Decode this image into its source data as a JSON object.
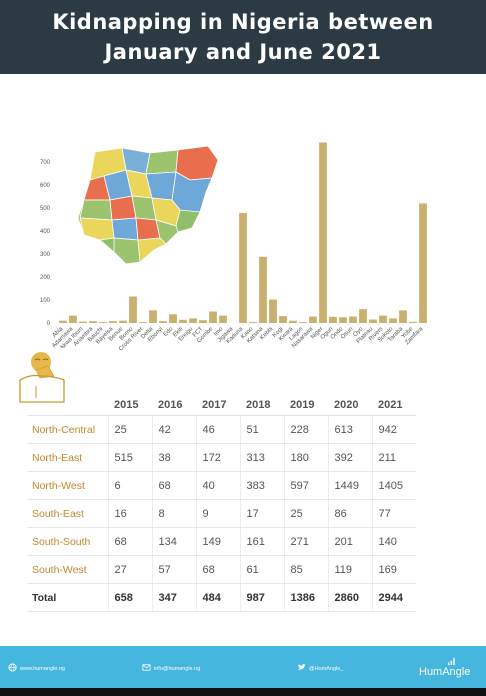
{
  "header": {
    "title_line1": "Kidnapping in Nigeria between",
    "title_line2": "January and June 2021"
  },
  "colors": {
    "header_bg": "#2b3a43",
    "bar": "#c9b06f",
    "footer_bg": "#45b6dd",
    "region_label": "#c08a2a"
  },
  "chart_data": {
    "type": "bar",
    "categories": [
      "Abia",
      "Adamawa",
      "Akwa Ibom",
      "Anambra",
      "Bauchi",
      "Bayelsa",
      "Benue",
      "Borno",
      "Cross River",
      "Delta",
      "Ebonyi",
      "Edo",
      "Ekiti",
      "Enugu",
      "FCT",
      "Gombe",
      "Imo",
      "Jigawa",
      "Kaduna",
      "Kano",
      "Katsina",
      "Kebbi",
      "Kogi",
      "Kwara",
      "Lagos",
      "Nasarawa",
      "Niger",
      "Ogun",
      "Ondo",
      "Osun",
      "Oyo",
      "Plateau",
      "Rivers",
      "Sokoto",
      "Taraba",
      "Yobe",
      "Zamfara"
    ],
    "values": [
      10,
      32,
      6,
      8,
      4,
      8,
      10,
      115,
      4,
      55,
      8,
      38,
      14,
      20,
      12,
      50,
      32,
      0,
      478,
      4,
      288,
      102,
      30,
      10,
      4,
      28,
      785,
      27,
      25,
      28,
      60,
      15,
      32,
      20,
      55,
      5,
      520
    ],
    "ylim": [
      0,
      800
    ],
    "yticks": [
      "0",
      "100",
      "200",
      "300",
      "400",
      "500",
      "600",
      "700"
    ],
    "grid": false
  },
  "table": {
    "headers": [
      "2015",
      "2016",
      "2017",
      "2018",
      "2019",
      "2020",
      "2021"
    ],
    "rows": [
      {
        "region": "North-Central",
        "values": [
          "25",
          "42",
          "46",
          "51",
          "228",
          "613",
          "942"
        ]
      },
      {
        "region": "North-East",
        "values": [
          "515",
          "38",
          "172",
          "313",
          "180",
          "392",
          "211"
        ]
      },
      {
        "region": "North-West",
        "values": [
          "6",
          "68",
          "40",
          "383",
          "597",
          "1449",
          "1405"
        ]
      },
      {
        "region": "South-East",
        "values": [
          "16",
          "8",
          "9",
          "17",
          "25",
          "86",
          "77"
        ]
      },
      {
        "region": "South-South",
        "values": [
          "68",
          "134",
          "149",
          "161",
          "271",
          "201",
          "140"
        ]
      },
      {
        "region": "South-West",
        "values": [
          "27",
          "57",
          "68",
          "61",
          "85",
          "119",
          "169"
        ]
      }
    ],
    "total": {
      "region": "Total",
      "values": [
        "658",
        "347",
        "484",
        "987",
        "1386",
        "2860",
        "2944"
      ]
    }
  },
  "footer": {
    "website": "www.humangle.ng",
    "email": "info@humangle.ng",
    "twitter": "@HumAngle_",
    "brand": "HumAngle",
    "icons": [
      "globe-icon",
      "mail-icon",
      "twitter-icon",
      "signal-icon"
    ]
  },
  "icons": [
    "nigeria-map-icon",
    "covering-face-person-icon"
  ]
}
